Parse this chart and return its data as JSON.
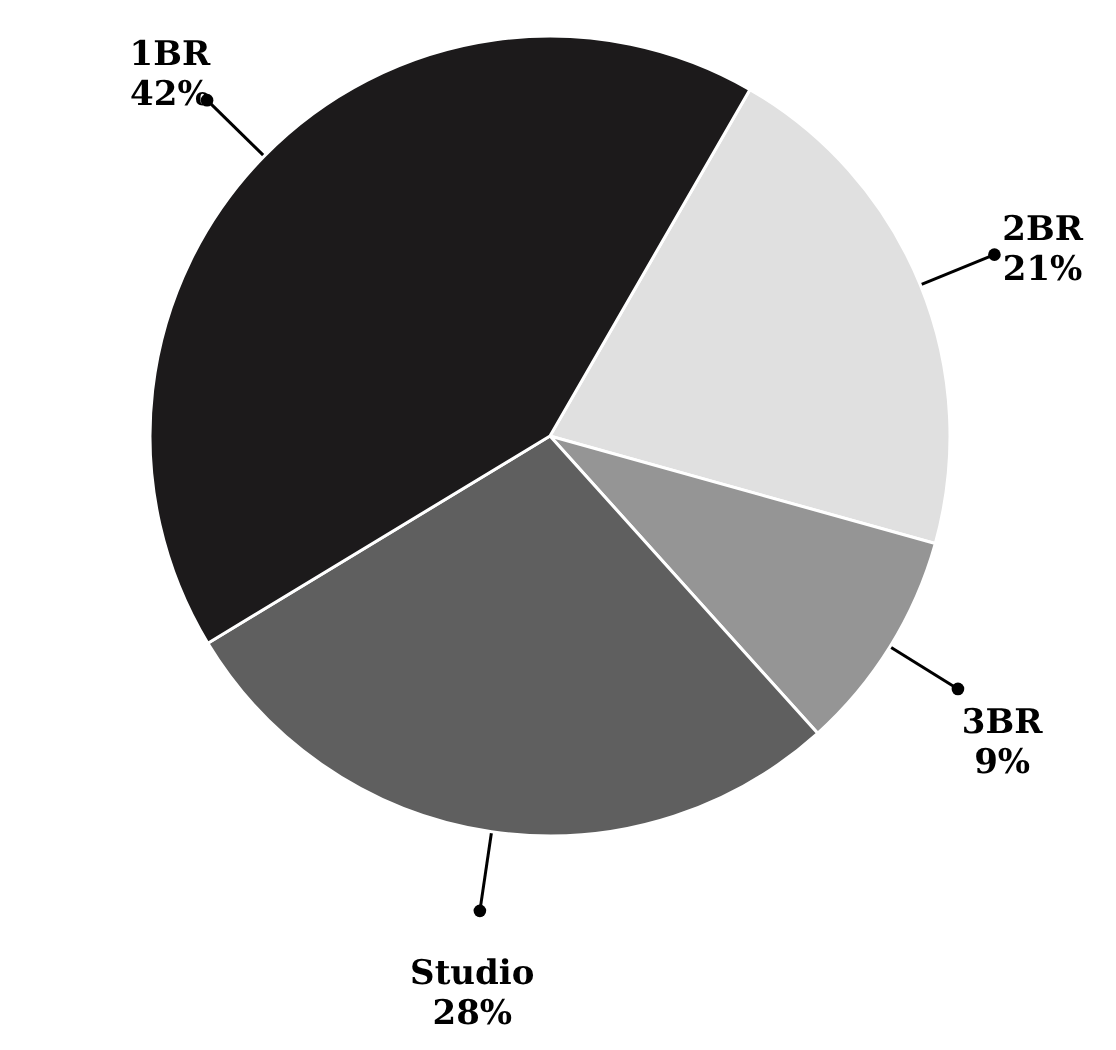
{
  "chart_data": {
    "type": "pie",
    "categories": [
      "2BR",
      "3BR",
      "Studio",
      "1BR"
    ],
    "values": [
      21,
      9,
      28,
      42
    ],
    "colors": [
      "#e0e0e0",
      "#959595",
      "#5f5f5f",
      "#1c1a1b"
    ],
    "value_labels": [
      "21%",
      "9%",
      "28%",
      "42%"
    ]
  }
}
